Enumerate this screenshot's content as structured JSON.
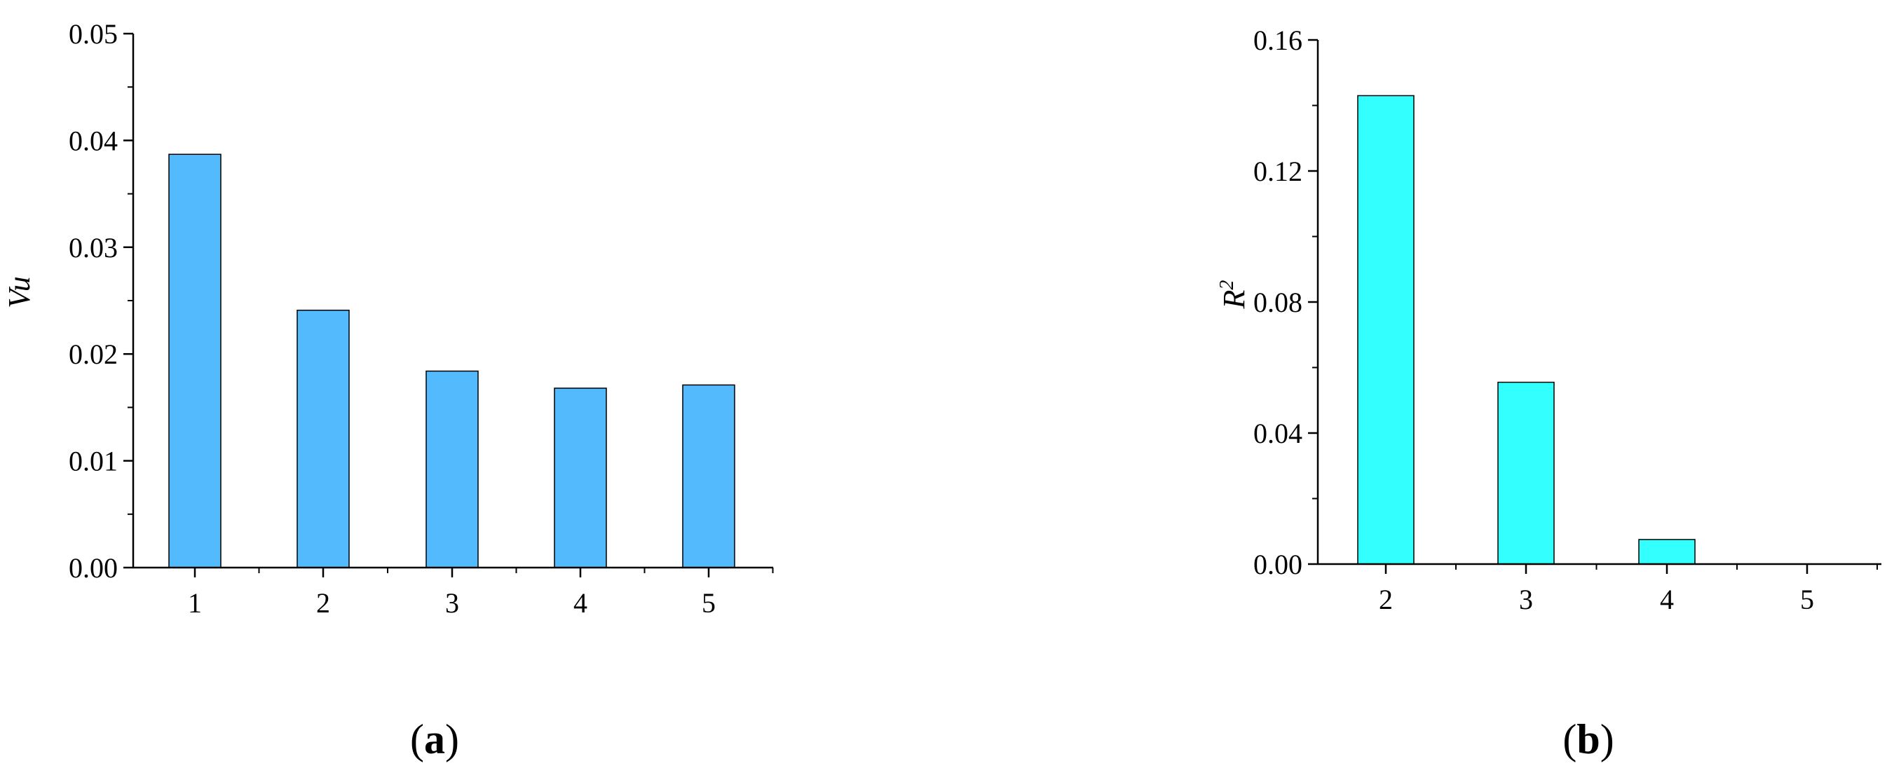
{
  "colors": {
    "bar_a": "#52BAFD",
    "bar_b": "#33FFFF",
    "axis": "#000000"
  },
  "chart_data": [
    {
      "type": "bar",
      "panel_label": {
        "open": "(",
        "letter": "a",
        "close": ")"
      },
      "title": "",
      "xlabel": "",
      "ylabel": "Vu",
      "categories": [
        "1",
        "2",
        "3",
        "4",
        "5"
      ],
      "values": [
        0.0387,
        0.0241,
        0.0184,
        0.0168,
        0.0171
      ],
      "ylim": [
        0,
        0.05
      ],
      "yticks": [
        0,
        0.01,
        0.02,
        0.03,
        0.04,
        0.05
      ],
      "ytick_labels": [
        "0.00",
        "0.01",
        "0.02",
        "0.03",
        "0.04",
        "0.05"
      ],
      "grid": false,
      "color": "#52BAFD"
    },
    {
      "type": "bar",
      "panel_label": {
        "open": "(",
        "letter": "b",
        "close": ")"
      },
      "title": "",
      "xlabel": "",
      "ylabel": {
        "base": "R",
        "sup": "2"
      },
      "categories": [
        "2",
        "3",
        "4",
        "5"
      ],
      "values": [
        0.143,
        0.0555,
        0.0075,
        0
      ],
      "ylim": [
        0,
        0.16
      ],
      "yticks": [
        0,
        0.04,
        0.08,
        0.12,
        0.16
      ],
      "ytick_labels": [
        "0.00",
        "0.04",
        "0.08",
        "0.12",
        "0.16"
      ],
      "grid": false,
      "color": "#33FFFF"
    }
  ]
}
